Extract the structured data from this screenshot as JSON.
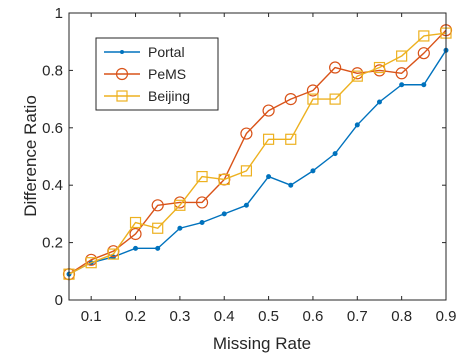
{
  "chart_data": {
    "type": "line",
    "title": "",
    "xlabel": "Missing Rate",
    "ylabel": "Difference Ratio",
    "xlim": [
      0.05,
      0.9
    ],
    "ylim": [
      0,
      1
    ],
    "xticks": [
      0.1,
      0.2,
      0.3,
      0.4,
      0.5,
      0.6,
      0.7,
      0.8,
      0.9
    ],
    "xtick_labels": [
      "0.1",
      "0.2",
      "0.3",
      "0.4",
      "0.5",
      "0.6",
      "0.7",
      "0.8",
      "0.9"
    ],
    "yticks": [
      0,
      0.2,
      0.4,
      0.6,
      0.8,
      1
    ],
    "ytick_labels": [
      "0",
      "0.2",
      "0.4",
      "0.6",
      "0.8",
      "1"
    ],
    "grid": false,
    "legend_position": "top-left",
    "x": [
      0.05,
      0.1,
      0.15,
      0.2,
      0.25,
      0.3,
      0.35,
      0.4,
      0.45,
      0.5,
      0.55,
      0.6,
      0.65,
      0.7,
      0.75,
      0.8,
      0.85,
      0.9
    ],
    "series": [
      {
        "name": "Portal",
        "color": "#0072BD",
        "marker": "dot",
        "values": [
          0.09,
          0.13,
          0.15,
          0.18,
          0.18,
          0.25,
          0.27,
          0.3,
          0.33,
          0.43,
          0.4,
          0.45,
          0.51,
          0.61,
          0.69,
          0.75,
          0.75,
          0.87
        ]
      },
      {
        "name": "PeMS",
        "color": "#D95319",
        "marker": "circle",
        "values": [
          0.09,
          0.14,
          0.17,
          0.23,
          0.33,
          0.34,
          0.34,
          0.42,
          0.58,
          0.66,
          0.7,
          0.73,
          0.81,
          0.79,
          0.8,
          0.79,
          0.86,
          0.94
        ]
      },
      {
        "name": "Beijing",
        "color": "#EDB120",
        "marker": "square",
        "values": [
          0.09,
          0.13,
          0.16,
          0.27,
          0.25,
          0.33,
          0.43,
          0.42,
          0.45,
          0.56,
          0.56,
          0.7,
          0.7,
          0.78,
          0.81,
          0.85,
          0.92,
          0.93
        ]
      }
    ]
  }
}
